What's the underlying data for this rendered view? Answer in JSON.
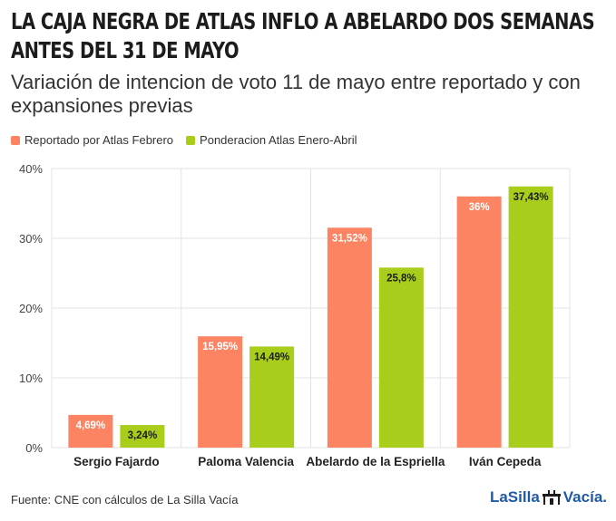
{
  "title": "LA CAJA NEGRA DE ATLAS INFLO A ABELARDO DOS SEMANAS ANTES DEL 31 DE MAYO",
  "subtitle": "Variación de intencion de voto 11 de mayo entre reportado y con expansiones previas",
  "source": "Fuente: CNE con cálculos de La Silla Vacía",
  "brand": {
    "left": "LaSilla",
    "right": "Vacía."
  },
  "colors": {
    "series1": "#fc8462",
    "series2": "#a8cd1b"
  },
  "chart_data": {
    "type": "bar",
    "categories": [
      "Sergio Fajardo",
      "Paloma Valencia",
      "Abelardo de la Espriella",
      "Iván Cepeda"
    ],
    "series": [
      {
        "name": "Reportado por Atlas Febrero",
        "values": [
          4.69,
          15.95,
          31.52,
          36
        ],
        "labels": [
          "4,69%",
          "15,95%",
          "31,52%",
          "36%"
        ]
      },
      {
        "name": "Ponderacion Atlas Enero-Abril",
        "values": [
          3.24,
          14.49,
          25.8,
          37.43
        ],
        "labels": [
          "3,24%",
          "14,49%",
          "25,8%",
          "37,43%"
        ]
      }
    ],
    "ylim": [
      0,
      40
    ],
    "yticks": [
      "0%",
      "10%",
      "20%",
      "30%",
      "40%"
    ],
    "grid": true,
    "legend": "top-left"
  }
}
